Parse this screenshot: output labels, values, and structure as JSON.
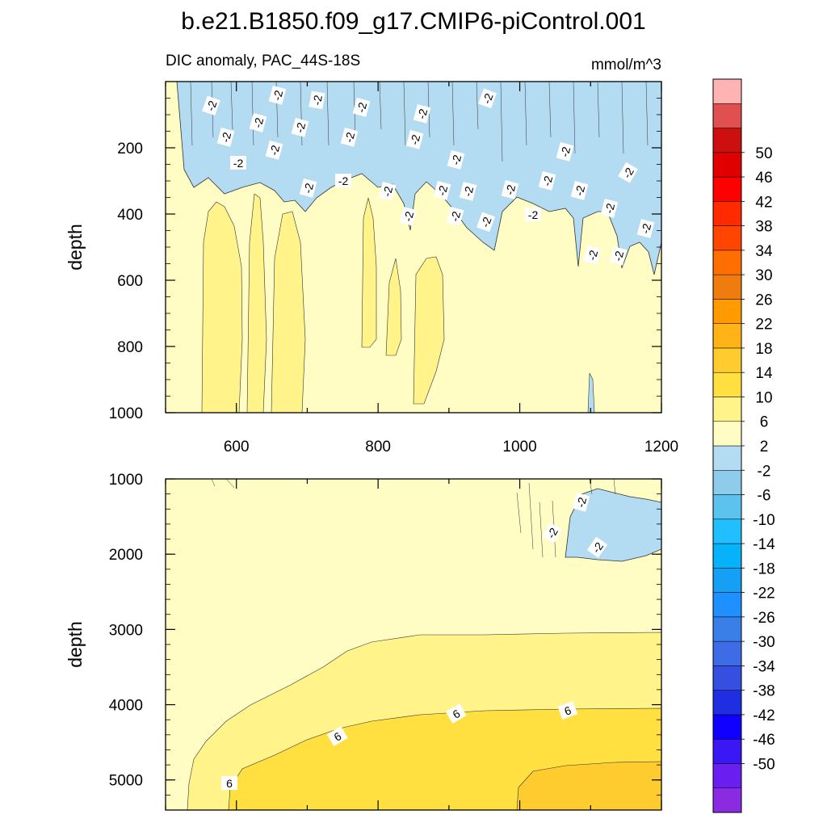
{
  "chart_data": {
    "type": "contour",
    "title": "b.e21.B1850.f09_g17.CMIP6-piControl.001",
    "subtitle_left": "DIC anomaly, PAC_44S-18S",
    "subtitle_right": "mmol/m^3",
    "colorbar": {
      "levels": [
        -50,
        -46,
        -42,
        -38,
        -34,
        -30,
        -26,
        -22,
        -18,
        -14,
        -10,
        -6,
        -2,
        2,
        6,
        10,
        14,
        18,
        22,
        26,
        30,
        34,
        38,
        42,
        46,
        50
      ],
      "tick_labels": [
        "-50",
        "-46",
        "-42",
        "-38",
        "-34",
        "-30",
        "-26",
        "-22",
        "-18",
        "-14",
        "-10",
        "-6",
        "-2",
        "2",
        "6",
        "10",
        "14",
        "18",
        "22",
        "26",
        "30",
        "34",
        "38",
        "42",
        "46",
        "50"
      ],
      "colors": [
        "#8a2be2",
        "#6a1ff0",
        "#3a18f5",
        "#0f00ff",
        "#1e2ee0",
        "#3550e0",
        "#3d6ce6",
        "#3a7fe8",
        "#1e90ff",
        "#16a0f5",
        "#06b3fa",
        "#20bfff",
        "#5cc3ef",
        "#8fcbeb",
        "#b3dcf2",
        "#fffdc4",
        "#fff38a",
        "#ffe040",
        "#ffcc30",
        "#ffb316",
        "#ff9a00",
        "#f07c10",
        "#ff6e00",
        "#ff4500",
        "#ff2a00",
        "#ff0000",
        "#e00000",
        "#cc1010",
        "#e05050",
        "#ffb3b3"
      ]
    },
    "panels": [
      {
        "name": "upper",
        "ylabel": "depth",
        "x_range": [
          500,
          1200
        ],
        "y_range": [
          0,
          1000
        ],
        "y_reversed": true,
        "x_ticks": [
          "600",
          "800",
          "1000",
          "1200"
        ],
        "y_ticks": [
          "200",
          "400",
          "600",
          "800",
          "1000"
        ],
        "contour_labels": [
          "-2",
          "-2",
          "-2",
          "-2",
          "-2",
          "-2",
          "-2",
          "-2",
          "-2",
          "-2",
          "-2",
          "-2",
          "-2",
          "-2",
          "-2",
          "-2",
          "-2",
          "-2",
          "-2",
          "-2",
          "-2",
          "-2",
          "-2",
          "-2",
          "-2",
          "-2",
          "-2",
          "-2",
          "-2",
          "-2",
          "-2",
          "-2"
        ]
      },
      {
        "name": "lower",
        "ylabel": "depth",
        "x_range": [
          500,
          1200
        ],
        "y_range": [
          1000,
          5400
        ],
        "y_reversed": true,
        "y_ticks": [
          "1000",
          "2000",
          "3000",
          "4000",
          "5000"
        ],
        "contour_labels": [
          "-2",
          "-2",
          "-2",
          "6",
          "6",
          "6",
          "6"
        ]
      }
    ]
  }
}
